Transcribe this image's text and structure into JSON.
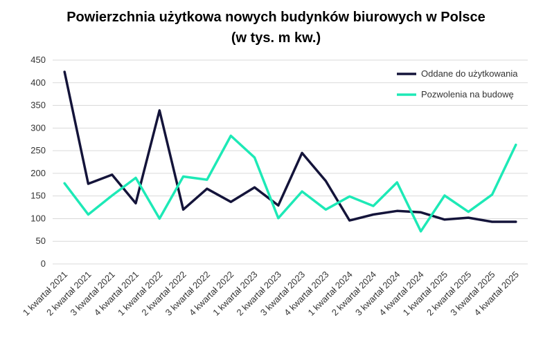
{
  "chart_data": {
    "type": "line",
    "title": "Powierzchnia użytkowa nowych budynków biurowych w Polsce",
    "subtitle": "(w tys. m kw.)",
    "categories": [
      "1 kwartał 2021",
      "2 kwartał 2021",
      "3 kwartał 2021",
      "4 kwartał 2021",
      "1 kwartał 2022",
      "2 kwartał 2022",
      "3 kwartał 2022",
      "4 kwartał 2022",
      "1 kwartał 2023",
      "2 kwartał 2023",
      "3 kwartał 2023",
      "4 kwartał 2023",
      "1 kwartał 2024",
      "2 kwartał 2024",
      "3 kwartał 2024",
      "4 kwartał 2024",
      "1 kwartał 2025",
      "2 kwartał 2025",
      "3 kwartał 2025",
      "4 kwartał 2025"
    ],
    "series": [
      {
        "name": "Oddane do użytkowania",
        "color": "#14143a",
        "values": [
          424,
          177,
          197,
          134,
          339,
          120,
          166,
          137,
          169,
          129,
          245,
          183,
          96,
          109,
          117,
          114,
          98,
          102,
          93,
          93
        ]
      },
      {
        "name": "Pozwolenia na budowę",
        "color": "#1de9b6",
        "values": [
          178,
          109,
          151,
          190,
          100,
          193,
          186,
          283,
          235,
          101,
          160,
          120,
          149,
          128,
          180,
          72,
          151,
          115,
          153,
          263
        ]
      }
    ],
    "ylim": [
      0,
      450
    ],
    "yticks": [
      0,
      50,
      100,
      150,
      200,
      250,
      300,
      350,
      400,
      450
    ],
    "grid": true,
    "legend": "top-right"
  }
}
